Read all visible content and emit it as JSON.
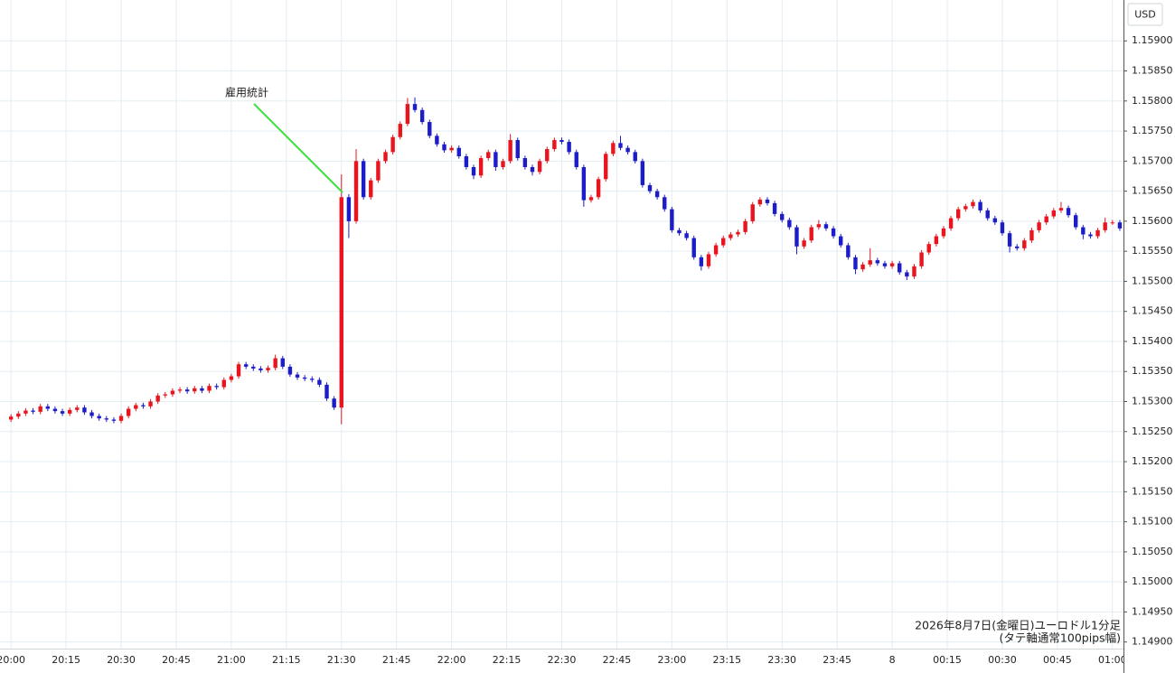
{
  "chart_data": {
    "type": "candlestick",
    "currency": "USD",
    "annotation": "雇用統計",
    "caption": [
      "2026年8月7日(金曜日)ユーロドル1分足",
      "(タテ軸通常100pips幅)"
    ],
    "up_color": "#e8151f",
    "down_color": "#1c1cc8",
    "grid": true,
    "xlim": [
      -3,
      303
    ],
    "ylim": [
      1.14889,
      1.15968
    ],
    "xticks": [
      {
        "value": 0,
        "label": "20:00"
      },
      {
        "value": 15,
        "label": "20:15"
      },
      {
        "value": 30,
        "label": "20:30"
      },
      {
        "value": 45,
        "label": "20:45"
      },
      {
        "value": 60,
        "label": "21:00"
      },
      {
        "value": 75,
        "label": "21:15"
      },
      {
        "value": 90,
        "label": "21:30"
      },
      {
        "value": 105,
        "label": "21:45"
      },
      {
        "value": 120,
        "label": "22:00"
      },
      {
        "value": 135,
        "label": "22:15"
      },
      {
        "value": 150,
        "label": "22:30"
      },
      {
        "value": 165,
        "label": "22:45"
      },
      {
        "value": 180,
        "label": "23:00"
      },
      {
        "value": 195,
        "label": "23:15"
      },
      {
        "value": 210,
        "label": "23:30"
      },
      {
        "value": 225,
        "label": "23:45"
      },
      {
        "value": 240,
        "label": "8"
      },
      {
        "value": 255,
        "label": "00:15"
      },
      {
        "value": 270,
        "label": "00:30"
      },
      {
        "value": 285,
        "label": "00:45"
      },
      {
        "value": 300,
        "label": "01:00"
      }
    ],
    "yticks": [
      {
        "value": 1.149,
        "label": "1.14900"
      },
      {
        "value": 1.1495,
        "label": "1.14950"
      },
      {
        "value": 1.15,
        "label": "1.15000"
      },
      {
        "value": 1.1505,
        "label": "1.15050"
      },
      {
        "value": 1.151,
        "label": "1.15100"
      },
      {
        "value": 1.1515,
        "label": "1.15150"
      },
      {
        "value": 1.152,
        "label": "1.15200"
      },
      {
        "value": 1.1525,
        "label": "1.15250"
      },
      {
        "value": 1.153,
        "label": "1.15300"
      },
      {
        "value": 1.1535,
        "label": "1.15350"
      },
      {
        "value": 1.154,
        "label": "1.15400"
      },
      {
        "value": 1.1545,
        "label": "1.15450"
      },
      {
        "value": 1.155,
        "label": "1.15500"
      },
      {
        "value": 1.1555,
        "label": "1.15550"
      },
      {
        "value": 1.156,
        "label": "1.15600"
      },
      {
        "value": 1.1565,
        "label": "1.15650"
      },
      {
        "value": 1.157,
        "label": "1.15700"
      },
      {
        "value": 1.1575,
        "label": "1.15750"
      },
      {
        "value": 1.158,
        "label": "1.15800"
      },
      {
        "value": 1.1585,
        "label": "1.15850"
      },
      {
        "value": 1.159,
        "label": "1.15900"
      }
    ],
    "x": [
      0,
      2,
      4,
      6,
      8,
      10,
      12,
      14,
      16,
      18,
      20,
      22,
      24,
      26,
      28,
      30,
      32,
      34,
      36,
      38,
      40,
      42,
      44,
      46,
      48,
      50,
      52,
      54,
      56,
      58,
      60,
      62,
      64,
      66,
      68,
      70,
      72,
      74,
      76,
      78,
      80,
      82,
      84,
      86,
      88,
      90,
      92,
      94,
      96,
      98,
      100,
      102,
      104,
      106,
      108,
      110,
      112,
      114,
      116,
      118,
      120,
      122,
      124,
      126,
      128,
      130,
      132,
      134,
      136,
      138,
      140,
      142,
      144,
      146,
      148,
      150,
      152,
      154,
      156,
      158,
      160,
      162,
      164,
      166,
      168,
      170,
      172,
      174,
      176,
      178,
      180,
      182,
      184,
      186,
      188,
      190,
      192,
      194,
      196,
      198,
      200,
      202,
      204,
      206,
      208,
      210,
      212,
      214,
      216,
      218,
      220,
      222,
      224,
      226,
      228,
      230,
      232,
      234,
      236,
      238,
      240,
      242,
      244,
      246,
      248,
      250,
      252,
      254,
      256,
      258,
      260,
      262,
      264,
      266,
      268,
      270,
      272,
      274,
      276,
      278,
      280,
      282,
      284,
      286,
      288,
      290,
      292,
      294,
      296,
      298,
      300,
      302
    ],
    "open": [
      1.1527,
      1.15275,
      1.1528,
      1.15285,
      1.15283,
      1.15292,
      1.15288,
      1.15284,
      1.1528,
      1.15286,
      1.1529,
      1.15282,
      1.15276,
      1.15272,
      1.1527,
      1.15268,
      1.15276,
      1.15288,
      1.15294,
      1.15292,
      1.153,
      1.1531,
      1.15312,
      1.15318,
      1.1532,
      1.15317,
      1.15322,
      1.15318,
      1.15326,
      1.15324,
      1.15336,
      1.15342,
      1.15362,
      1.15358,
      1.15355,
      1.15352,
      1.15356,
      1.15372,
      1.15358,
      1.15345,
      1.1534,
      1.15338,
      1.15336,
      1.15328,
      1.15305,
      1.1529,
      1.1564,
      1.156,
      1.157,
      1.1564,
      1.15668,
      1.157,
      1.15715,
      1.1574,
      1.15762,
      1.15795,
      1.15785,
      1.15765,
      1.15742,
      1.15728,
      1.15718,
      1.15722,
      1.15708,
      1.1569,
      1.15676,
      1.15705,
      1.15715,
      1.1569,
      1.157,
      1.15735,
      1.15705,
      1.1569,
      1.15682,
      1.157,
      1.1572,
      1.15735,
      1.15732,
      1.15715,
      1.1569,
      1.15635,
      1.1564,
      1.1567,
      1.15712,
      1.1573,
      1.15722,
      1.15715,
      1.157,
      1.1566,
      1.1565,
      1.1564,
      1.1562,
      1.15585,
      1.1558,
      1.15572,
      1.1554,
      1.15525,
      1.15545,
      1.1556,
      1.15572,
      1.15578,
      1.15582,
      1.156,
      1.15628,
      1.15636,
      1.1563,
      1.15612,
      1.15602,
      1.1559,
      1.15558,
      1.15568,
      1.1559,
      1.15595,
      1.15588,
      1.15575,
      1.1556,
      1.1554,
      1.1552,
      1.15528,
      1.15535,
      1.1553,
      1.15525,
      1.1553,
      1.15515,
      1.15508,
      1.15525,
      1.15548,
      1.15562,
      1.15575,
      1.15588,
      1.15605,
      1.1562,
      1.15625,
      1.15632,
      1.15618,
      1.15605,
      1.15598,
      1.1558,
      1.15558,
      1.15555,
      1.15568,
      1.15585,
      1.15598,
      1.15608,
      1.15618,
      1.15622,
      1.1561,
      1.1559,
      1.15578,
      1.15575,
      1.15585,
      1.15598,
      1.15598
    ],
    "high": [
      1.15279,
      1.15284,
      1.15289,
      1.15289,
      1.15296,
      1.15296,
      1.15292,
      1.15288,
      1.1529,
      1.15294,
      1.15294,
      1.15286,
      1.1528,
      1.15276,
      1.15274,
      1.1528,
      1.15292,
      1.15298,
      1.15298,
      1.15304,
      1.15314,
      1.15316,
      1.15322,
      1.15324,
      1.15324,
      1.15326,
      1.15326,
      1.1533,
      1.1533,
      1.1534,
      1.15346,
      1.15366,
      1.15366,
      1.15362,
      1.15359,
      1.1536,
      1.15378,
      1.15376,
      1.15362,
      1.15349,
      1.15344,
      1.15342,
      1.1534,
      1.15332,
      1.15309,
      1.15678,
      1.15645,
      1.1572,
      1.15704,
      1.15672,
      1.15704,
      1.15719,
      1.15744,
      1.15766,
      1.15805,
      1.15806,
      1.15789,
      1.15769,
      1.15746,
      1.15732,
      1.15726,
      1.15726,
      1.15712,
      1.15694,
      1.15709,
      1.15719,
      1.15719,
      1.15704,
      1.15745,
      1.15739,
      1.15709,
      1.15694,
      1.15704,
      1.15724,
      1.15739,
      1.15739,
      1.15736,
      1.15719,
      1.15694,
      1.15644,
      1.15674,
      1.15716,
      1.15734,
      1.15742,
      1.15726,
      1.15719,
      1.15704,
      1.15664,
      1.15654,
      1.15644,
      1.15624,
      1.15589,
      1.15584,
      1.15576,
      1.15544,
      1.15549,
      1.15564,
      1.15576,
      1.15582,
      1.15586,
      1.15604,
      1.15632,
      1.1564,
      1.1564,
      1.15634,
      1.15616,
      1.15606,
      1.15594,
      1.15572,
      1.15594,
      1.15602,
      1.15599,
      1.15592,
      1.15579,
      1.15564,
      1.15544,
      1.15532,
      1.15555,
      1.15539,
      1.15534,
      1.15534,
      1.15534,
      1.15519,
      1.15529,
      1.15552,
      1.15566,
      1.15579,
      1.15592,
      1.15609,
      1.15624,
      1.15629,
      1.15636,
      1.15636,
      1.15622,
      1.15609,
      1.15602,
      1.15584,
      1.15562,
      1.15572,
      1.15589,
      1.15602,
      1.15612,
      1.15622,
      1.15632,
      1.15626,
      1.15614,
      1.15594,
      1.15582,
      1.15589,
      1.15606,
      1.15602,
      1.15602
    ],
    "low": [
      1.15266,
      1.15271,
      1.15276,
      1.15279,
      1.15279,
      1.15284,
      1.1528,
      1.15276,
      1.15276,
      1.15282,
      1.15278,
      1.15272,
      1.15268,
      1.15266,
      1.15264,
      1.15264,
      1.15272,
      1.15284,
      1.15288,
      1.15288,
      1.15296,
      1.15306,
      1.15308,
      1.15314,
      1.15313,
      1.15313,
      1.15314,
      1.15314,
      1.1532,
      1.1532,
      1.15332,
      1.15338,
      1.15354,
      1.15351,
      1.15348,
      1.15348,
      1.15352,
      1.15354,
      1.15341,
      1.15336,
      1.15334,
      1.15332,
      1.15324,
      1.15301,
      1.15286,
      1.15262,
      1.15572,
      1.15596,
      1.15636,
      1.15636,
      1.15664,
      1.15696,
      1.15711,
      1.15736,
      1.15758,
      1.15781,
      1.15761,
      1.15738,
      1.15724,
      1.15714,
      1.15714,
      1.15704,
      1.15686,
      1.1567,
      1.15672,
      1.15701,
      1.15684,
      1.15686,
      1.15696,
      1.15701,
      1.15686,
      1.15676,
      1.15678,
      1.15696,
      1.15716,
      1.15728,
      1.15711,
      1.15686,
      1.15624,
      1.15631,
      1.15636,
      1.15666,
      1.15708,
      1.15718,
      1.15711,
      1.15696,
      1.15656,
      1.15646,
      1.15636,
      1.15616,
      1.15581,
      1.15576,
      1.15568,
      1.15536,
      1.15518,
      1.15521,
      1.15541,
      1.15556,
      1.15568,
      1.15574,
      1.15578,
      1.15596,
      1.15624,
      1.15626,
      1.15608,
      1.15598,
      1.15586,
      1.15545,
      1.15554,
      1.15564,
      1.15586,
      1.15584,
      1.15571,
      1.15556,
      1.15536,
      1.15512,
      1.15516,
      1.15524,
      1.15526,
      1.15521,
      1.15521,
      1.15511,
      1.15502,
      1.15504,
      1.15521,
      1.15544,
      1.15558,
      1.15571,
      1.15584,
      1.15601,
      1.15616,
      1.15621,
      1.15614,
      1.15601,
      1.15594,
      1.15576,
      1.15548,
      1.15551,
      1.15551,
      1.15564,
      1.15581,
      1.15594,
      1.15604,
      1.15614,
      1.15606,
      1.15586,
      1.1557,
      1.15571,
      1.15571,
      1.15581,
      1.15594,
      1.15584
    ],
    "close": [
      1.15275,
      1.1528,
      1.15285,
      1.15283,
      1.15292,
      1.15288,
      1.15284,
      1.1528,
      1.15286,
      1.1529,
      1.15282,
      1.15276,
      1.15272,
      1.1527,
      1.15268,
      1.15276,
      1.15288,
      1.15294,
      1.15292,
      1.153,
      1.1531,
      1.15312,
      1.15318,
      1.1532,
      1.15317,
      1.15322,
      1.15318,
      1.15326,
      1.15324,
      1.15336,
      1.15342,
      1.15362,
      1.15358,
      1.15355,
      1.15352,
      1.15356,
      1.15372,
      1.15358,
      1.15345,
      1.1534,
      1.15338,
      1.15336,
      1.15328,
      1.15305,
      1.1529,
      1.1564,
      1.156,
      1.157,
      1.1564,
      1.15668,
      1.157,
      1.15715,
      1.1574,
      1.15762,
      1.15795,
      1.15785,
      1.15765,
      1.15742,
      1.15728,
      1.15718,
      1.15722,
      1.15708,
      1.1569,
      1.15676,
      1.15705,
      1.15715,
      1.1569,
      1.157,
      1.15735,
      1.15705,
      1.1569,
      1.15682,
      1.157,
      1.1572,
      1.15735,
      1.15732,
      1.15715,
      1.1569,
      1.15635,
      1.1564,
      1.1567,
      1.15712,
      1.1573,
      1.15722,
      1.15715,
      1.157,
      1.1566,
      1.1565,
      1.1564,
      1.1562,
      1.15585,
      1.1558,
      1.15572,
      1.1554,
      1.15525,
      1.15545,
      1.1556,
      1.15572,
      1.15578,
      1.15582,
      1.156,
      1.15628,
      1.15636,
      1.1563,
      1.15612,
      1.15602,
      1.1559,
      1.15558,
      1.15568,
      1.1559,
      1.15595,
      1.15588,
      1.15575,
      1.1556,
      1.1554,
      1.1552,
      1.15528,
      1.15535,
      1.1553,
      1.15525,
      1.1553,
      1.15515,
      1.15508,
      1.15525,
      1.15548,
      1.15562,
      1.15575,
      1.15588,
      1.15605,
      1.1562,
      1.15625,
      1.15632,
      1.15618,
      1.15605,
      1.15598,
      1.1558,
      1.15558,
      1.15555,
      1.15568,
      1.15585,
      1.15598,
      1.15608,
      1.15618,
      1.15622,
      1.1561,
      1.1559,
      1.15578,
      1.15575,
      1.15585,
      1.15598,
      1.15598,
      1.15588
    ]
  }
}
